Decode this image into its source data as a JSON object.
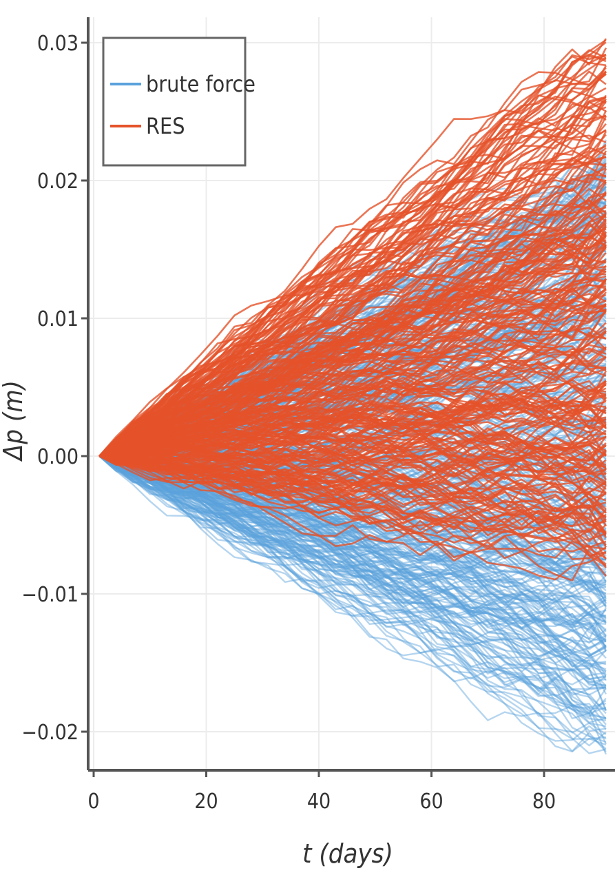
{
  "chart_data": {
    "type": "line",
    "xlabel": "t (days)",
    "ylabel": "Δp (m)",
    "xlim": [
      0,
      92
    ],
    "ylim": [
      -0.022,
      0.031
    ],
    "x_ticks": [
      0,
      20,
      40,
      60,
      80
    ],
    "x_tick_labels": [
      "0",
      "20",
      "40",
      "60",
      "80"
    ],
    "y_ticks": [
      -0.02,
      -0.01,
      0.0,
      0.01,
      0.02,
      0.03
    ],
    "y_tick_labels": [
      "−0.02",
      "−0.01",
      "0.00",
      "0.01",
      "0.02",
      "0.03"
    ],
    "grid": true,
    "legend_position": "top-left",
    "series": [
      {
        "name": "brute force",
        "color": "#5aa2dc",
        "ensemble_size": 450,
        "t_start": 1,
        "t_end": 90,
        "step_days": 3,
        "start_value": 0.0,
        "end_range": [
          -0.021,
          0.022
        ]
      },
      {
        "name": "RES",
        "color": "#e5532a",
        "ensemble_size": 260,
        "t_start": 1,
        "t_end": 90,
        "step_days": 3,
        "start_value": 0.0,
        "end_range": [
          -0.008,
          0.03
        ]
      }
    ]
  }
}
